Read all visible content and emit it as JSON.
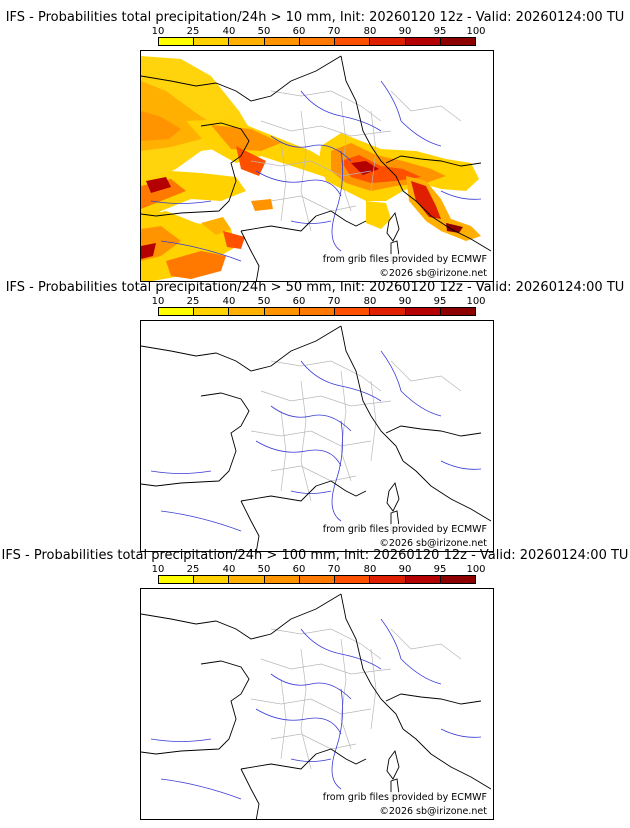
{
  "panels": [
    {
      "title": "IFS - Probabilities total precipitation/24h > 10 mm, Init: 20260120 12z - Valid: 20260124:00 TU",
      "threshold_mm": 10,
      "credit_source": "from grib files provided by ECMWF",
      "credit_copyright": "©2026 sb@irizone.net"
    },
    {
      "title": "IFS - Probabilities total precipitation/24h > 50 mm, Init: 20260120 12z - Valid: 20260124:00 TU",
      "threshold_mm": 50,
      "credit_source": "from grib files provided by ECMWF",
      "credit_copyright": "©2026 sb@irizone.net"
    },
    {
      "title": "IFS - Probabilities total precipitation/24h > 100 mm, Init: 20260120 12z - Valid: 20260124:00 TU",
      "threshold_mm": 100,
      "credit_source": "from grib files provided by ECMWF",
      "credit_copyright": "©2026 sb@irizone.net"
    }
  ],
  "legend": {
    "ticks": [
      "10",
      "25",
      "40",
      "50",
      "60",
      "70",
      "80",
      "90",
      "95",
      "100"
    ],
    "colors": [
      "#ffff00",
      "#ffd200",
      "#ffb000",
      "#ff9400",
      "#ff7800",
      "#ff5000",
      "#e01e00",
      "#b40000",
      "#8c0000"
    ]
  },
  "map_colors": {
    "coastline": "#000000",
    "rivers": "#3a3ad6",
    "regions": "#b8b8b8",
    "land_bg": "#ffffff"
  }
}
